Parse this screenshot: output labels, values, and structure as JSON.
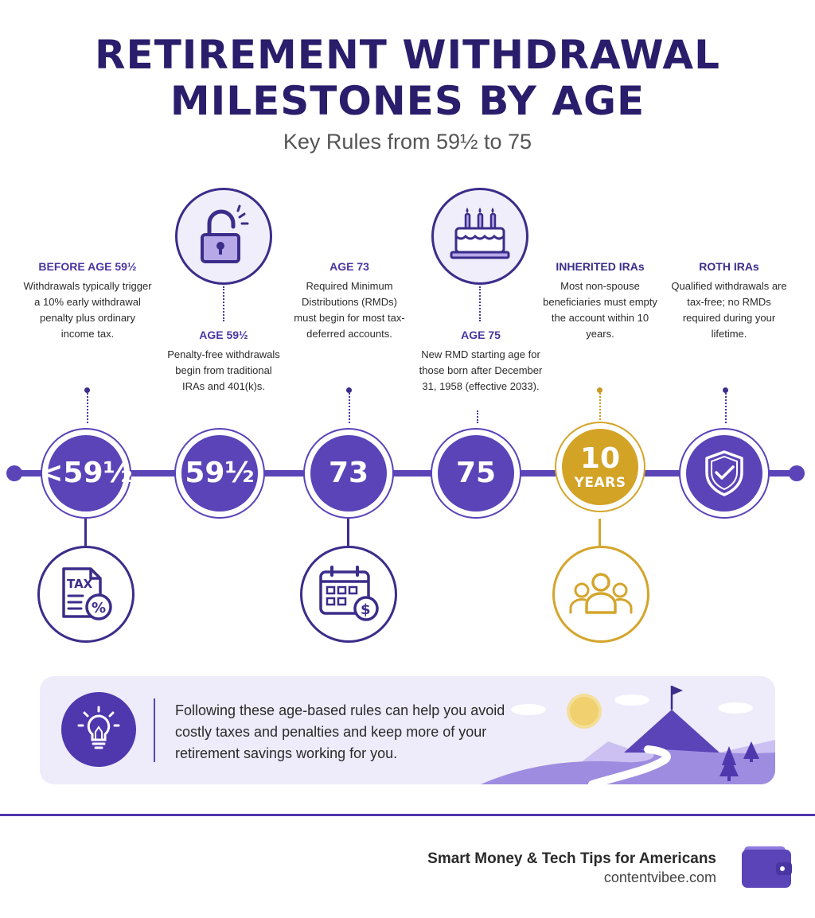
{
  "title": {
    "line1": "RETIREMENT WITHDRAWAL",
    "line2": "MILESTONES BY AGE",
    "subtitle": "Key Rules from 59½ to 75"
  },
  "milestones": [
    {
      "heading": "BEFORE AGE 59½",
      "description": "Withdrawals typically trigger a 10% early withdrawal penalty plus ordinary income tax.",
      "node_label": "<59½",
      "icon": "tax-document-icon"
    },
    {
      "heading": "AGE 59½",
      "description": "Penalty-free withdrawals begin from traditional IRAs and 401(k)s.",
      "node_label": "59½",
      "icon": "unlocked-padlock-icon"
    },
    {
      "heading": "AGE 73",
      "description": "Required Minimum Distributions (RMDs) must begin for most tax-deferred accounts.",
      "node_label": "73",
      "icon": "calendar-dollar-icon"
    },
    {
      "heading": "AGE 75",
      "description": "New RMD starting age for those born after December 31, 1958 (effective 2033).",
      "node_label": "75",
      "icon": "birthday-cake-icon"
    },
    {
      "heading": "INHERITED IRAs",
      "description": "Most non-spouse beneficiaries must empty the account within 10 years.",
      "node_label": "10",
      "node_sublabel": "YEARS",
      "icon": "beneficiaries-group-icon"
    },
    {
      "heading": "ROTH IRAs",
      "description": "Qualified withdrawals are tax-free; no RMDs required during your lifetime.",
      "icon": "shield-check-icon"
    }
  ],
  "colors": {
    "primary": "#5b43b8",
    "dark": "#2a1d6b",
    "gold": "#d3a326",
    "banner_bg": "#eeebfa"
  },
  "banner": {
    "text": "Following these age-based rules can help you avoid costly taxes and penalties and keep more of your retirement savings working for you.",
    "icon": "lightbulb-icon"
  },
  "footer": {
    "tagline": "Smart Money & Tech Tips for Americans",
    "site": "contentvibee.com",
    "icon": "wallet-icon"
  }
}
